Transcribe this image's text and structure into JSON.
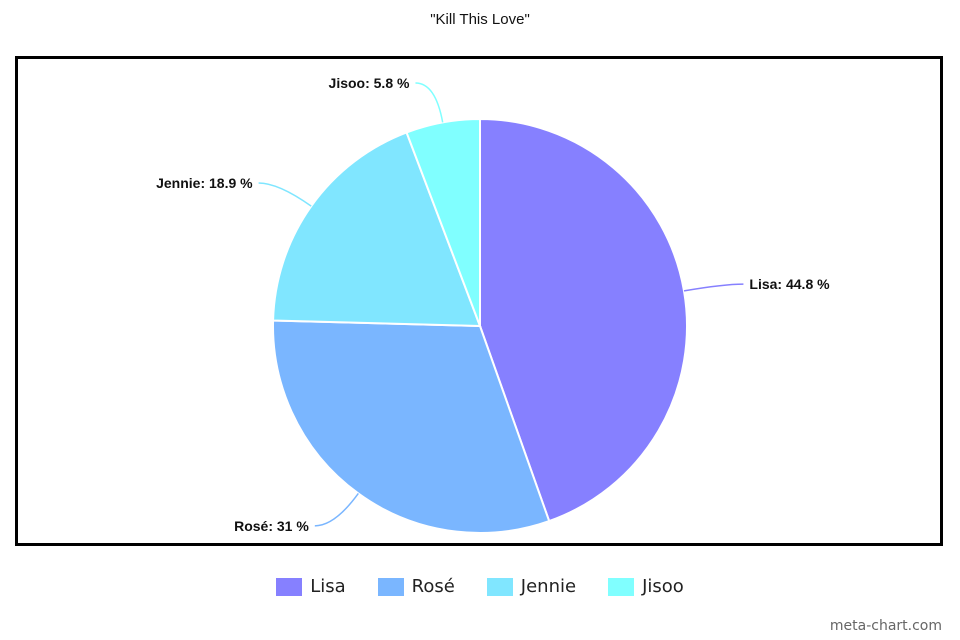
{
  "chart_data": {
    "type": "pie",
    "title": "\"Kill This Love\"",
    "slices": [
      {
        "name": "Lisa",
        "value": 44.8,
        "label": "Lisa: 44.8 %",
        "color": "#8680ff"
      },
      {
        "name": "Rosé",
        "value": 31,
        "label": "Rosé: 31 %",
        "color": "#7ab6ff"
      },
      {
        "name": "Jennie",
        "value": 18.9,
        "label": "Jennie: 18.9 %",
        "color": "#80e6ff"
      },
      {
        "name": "Jisoo",
        "value": 5.8,
        "label": "Jisoo: 5.8 %",
        "color": "#80ffff"
      }
    ],
    "legend": {
      "position": "bottom",
      "items": [
        "Lisa",
        "Rosé",
        "Jennie",
        "Jisoo"
      ]
    }
  },
  "watermark": "meta-chart.com"
}
